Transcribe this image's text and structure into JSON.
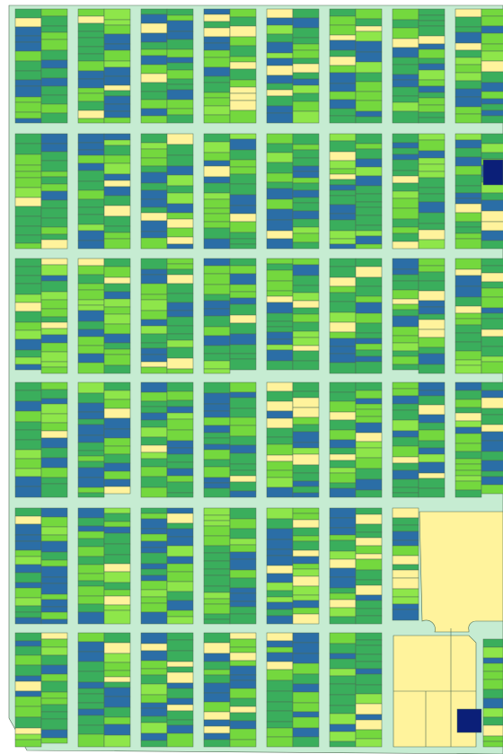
{
  "map": {
    "colors": {
      "ground": "#c6ecd2",
      "outline": "#4d6b52",
      "lots": [
        "#3aae5c",
        "#3aae5c",
        "#3aae5c",
        "#74d83e",
        "#74d83e",
        "#8ee64a",
        "#2b6ea6",
        "#2b6ea6",
        "#fff39c"
      ],
      "open": "#fff39c",
      "dark": "#0b1f78"
    }
  }
}
